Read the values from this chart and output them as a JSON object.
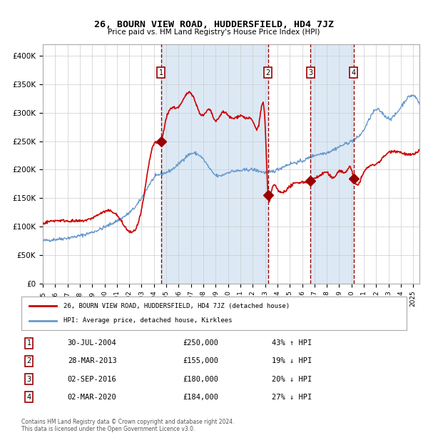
{
  "title": "26, BOURN VIEW ROAD, HUDDERSFIELD, HD4 7JZ",
  "subtitle": "Price paid vs. HM Land Registry's House Price Index (HPI)",
  "ylabel": "",
  "background_color": "#ffffff",
  "plot_bg_color": "#dce9f5",
  "grid_color": "#ffffff",
  "red_color": "#cc0000",
  "blue_color": "#6699cc",
  "sale_color": "#990000",
  "sales": [
    {
      "num": 1,
      "date": "30-JUL-2004",
      "price": 250000,
      "pct": "43%",
      "dir": "↑",
      "x_year": 2004.58
    },
    {
      "num": 2,
      "date": "28-MAR-2013",
      "price": 155000,
      "pct": "19%",
      "dir": "↓",
      "x_year": 2013.24
    },
    {
      "num": 3,
      "date": "02-SEP-2016",
      "price": 180000,
      "pct": "20%",
      "dir": "↓",
      "x_year": 2016.67
    },
    {
      "num": 4,
      "date": "02-MAR-2020",
      "price": 184000,
      "pct": "27%",
      "dir": "↓",
      "x_year": 2020.17
    }
  ],
  "legend_house": "26, BOURN VIEW ROAD, HUDDERSFIELD, HD4 7JZ (detached house)",
  "legend_hpi": "HPI: Average price, detached house, Kirklees",
  "footer": "Contains HM Land Registry data © Crown copyright and database right 2024.\nThis data is licensed under the Open Government Licence v3.0.",
  "ylim": [
    0,
    420000
  ],
  "xlim_start": 1995.0,
  "xlim_end": 2025.5
}
